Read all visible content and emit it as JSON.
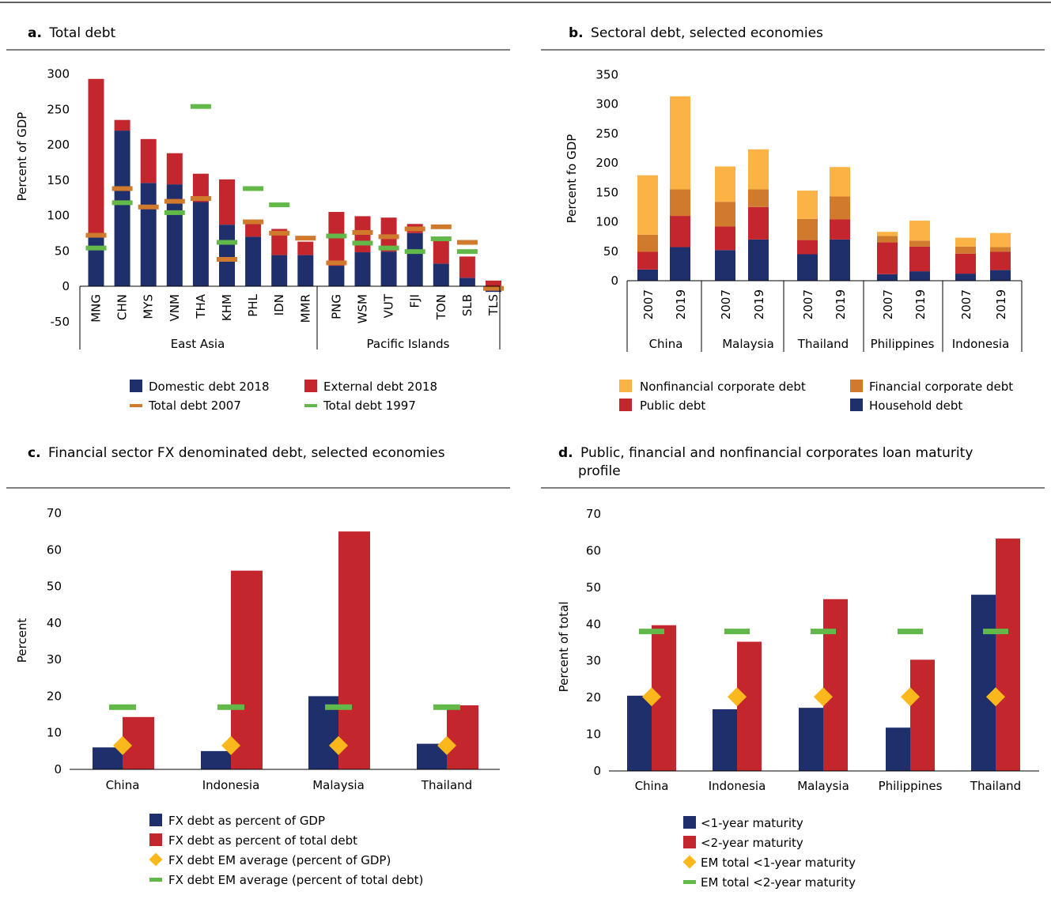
{
  "colors": {
    "domestic": "#1f2f6b",
    "external": "#c4262e",
    "total2007": "#d07a2d",
    "total1997": "#62b849",
    "nonfinancial": "#fbb345",
    "financial": "#d07a2d",
    "public": "#c4262e",
    "household": "#1f2f6b",
    "em_diamond": "#fbb81d"
  },
  "chart_data": [
    {
      "id": "a",
      "type": "bar",
      "stacked": true,
      "title_letter": "a.",
      "title": "Total debt",
      "ylabel": "Percent of GDP",
      "ylim": [
        -50,
        300
      ],
      "yticks": [
        "-50",
        "0",
        "50",
        "100",
        "150",
        "200",
        "250",
        "300"
      ],
      "categories": [
        "MNG",
        "CHN",
        "MYS",
        "VNM",
        "THA",
        "KHM",
        "PHL",
        "IDN",
        "MMR",
        "PNG",
        "WSM",
        "VUT",
        "FJI",
        "TON",
        "SLB",
        "TLS"
      ],
      "groups": [
        {
          "label": "East Asia",
          "count": 9
        },
        {
          "label": "Pacific Islands",
          "count": 7
        }
      ],
      "series": [
        {
          "name": "Domestic debt 2018",
          "kind": "bar",
          "color_key": "domestic",
          "values": [
            70,
            220,
            146,
            144,
            119,
            87,
            70,
            44,
            44,
            29,
            48,
            49,
            75,
            32,
            12,
            -8
          ]
        },
        {
          "name": "External debt 2018",
          "kind": "bar",
          "color_key": "external",
          "values": [
            223,
            15,
            62,
            44,
            40,
            64,
            19,
            37,
            19,
            76,
            51,
            48,
            13,
            38,
            30,
            8
          ]
        },
        {
          "name": "Total debt 2007",
          "kind": "marker",
          "color_key": "total2007",
          "values": [
            72,
            138,
            112,
            120,
            124,
            38,
            91,
            75,
            68,
            33,
            76,
            70,
            81,
            84,
            62,
            -3
          ]
        },
        {
          "name": "Total debt 1997",
          "kind": "marker",
          "color_key": "total1997",
          "values": [
            54,
            118,
            null,
            104,
            254,
            62,
            138,
            115,
            null,
            71,
            61,
            54,
            49,
            67,
            49,
            null
          ]
        }
      ]
    },
    {
      "id": "b",
      "type": "bar",
      "stacked": true,
      "title_letter": "b.",
      "title": "Sectoral debt, selected economies",
      "ylabel": "Percent fo GDP",
      "ylim": [
        0,
        350
      ],
      "yticks": [
        "0",
        "50",
        "100",
        "150",
        "200",
        "250",
        "300",
        "350"
      ],
      "categories": [
        "2007",
        "2019",
        "2007",
        "2019",
        "2007",
        "2019",
        "2007",
        "2019",
        "2007",
        "2019"
      ],
      "groups": [
        {
          "label": "China",
          "count": 2
        },
        {
          "label": "Malaysia",
          "count": 2
        },
        {
          "label": "Thailand",
          "count": 2
        },
        {
          "label": "Philippines",
          "count": 2
        },
        {
          "label": "Indonesia",
          "count": 2
        }
      ],
      "series": [
        {
          "name": "Household debt",
          "color_key": "household",
          "values": [
            19,
            57,
            52,
            70,
            45,
            70,
            11,
            16,
            12,
            18
          ]
        },
        {
          "name": "Public debt",
          "color_key": "public",
          "values": [
            30,
            53,
            40,
            55,
            24,
            34,
            54,
            42,
            34,
            31
          ]
        },
        {
          "name": "Financial corporate debt",
          "color_key": "financial",
          "values": [
            29,
            45,
            42,
            30,
            36,
            39,
            11,
            10,
            12,
            8
          ]
        },
        {
          "name": "Nonfinancial corporate debt",
          "color_key": "nonfinancial",
          "values": [
            101,
            158,
            60,
            68,
            48,
            50,
            7,
            34,
            15,
            24
          ]
        }
      ],
      "legend_order": [
        "Nonfinancial corporate debt",
        "Financial corporate debt",
        "Public debt",
        "Household debt"
      ]
    },
    {
      "id": "c",
      "type": "bar",
      "title_letter": "c.",
      "title": "Financial sector FX denominated debt, selected economies",
      "ylabel": "Percent",
      "ylim": [
        0,
        70
      ],
      "yticks": [
        "0",
        "10",
        "20",
        "30",
        "40",
        "50",
        "60",
        "70"
      ],
      "categories": [
        "China",
        "Indonesia",
        "Malaysia",
        "Thailand"
      ],
      "series": [
        {
          "name": "FX debt as percent of GDP",
          "kind": "bar",
          "color_key": "domestic",
          "values": [
            6,
            5,
            20,
            7
          ]
        },
        {
          "name": "FX debt as percent of total debt",
          "kind": "bar",
          "color_key": "external",
          "values": [
            14.3,
            54.3,
            65,
            17.5
          ]
        },
        {
          "name": "FX debt EM average (percent of GDP)",
          "kind": "diamond",
          "color_key": "em_diamond",
          "values": [
            6.5,
            6.5,
            6.5,
            6.5
          ]
        },
        {
          "name": "FX debt EM average (percent of total debt)",
          "kind": "marker",
          "color_key": "total1997",
          "values": [
            17,
            17,
            17,
            17
          ]
        }
      ]
    },
    {
      "id": "d",
      "type": "bar",
      "title_letter": "d.",
      "title": "Public, financial and nonfinancial corporates loan maturity",
      "title_line2": "profile",
      "ylabel": "Percent of total",
      "ylim": [
        0,
        70
      ],
      "yticks": [
        "0",
        "10",
        "20",
        "30",
        "40",
        "50",
        "60",
        "70"
      ],
      "categories": [
        "China",
        "Indonesia",
        "Malaysia",
        "Philippines",
        "Thailand"
      ],
      "series": [
        {
          "name": "<1-year maturity",
          "kind": "bar",
          "color_key": "domestic",
          "values": [
            20.5,
            16.8,
            17.2,
            11.8,
            48
          ]
        },
        {
          "name": "<2-year maturity",
          "kind": "bar",
          "color_key": "external",
          "values": [
            39.7,
            35.2,
            46.8,
            30.3,
            63.3
          ]
        },
        {
          "name": "EM total <1-year maturity",
          "kind": "diamond",
          "color_key": "em_diamond",
          "values": [
            20.2,
            20.2,
            20.2,
            20.2,
            20.2
          ]
        },
        {
          "name": "EM total <2-year maturity",
          "kind": "marker",
          "color_key": "total1997",
          "values": [
            38,
            38,
            38,
            38,
            38
          ]
        }
      ]
    }
  ]
}
